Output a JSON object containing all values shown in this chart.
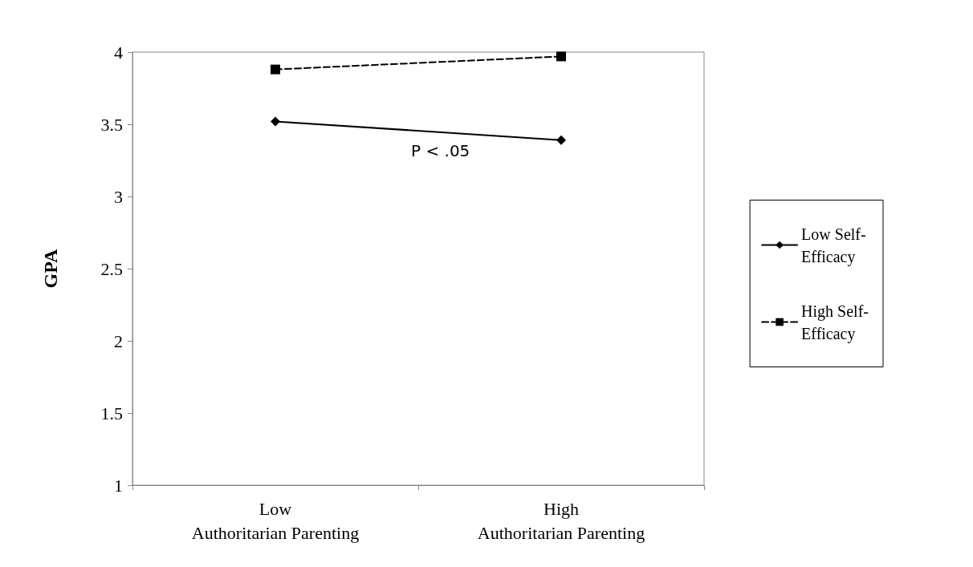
{
  "chart_data": {
    "type": "line",
    "ylabel": "GPA",
    "categories": [
      "Low Authoritarian Parenting",
      "High Authoritarian Parenting"
    ],
    "series": [
      {
        "name": "Low Self-Efficacy",
        "color": "#000000",
        "values": [
          3.52,
          3.39
        ],
        "marker": "diamond",
        "line_style": "solid"
      },
      {
        "name": "High Self-Efficacy",
        "color": "#000000",
        "values": [
          3.88,
          3.97
        ],
        "marker": "square",
        "line_style": "dashed"
      }
    ],
    "ylim": [
      1,
      4
    ],
    "yticks": [
      1,
      1.5,
      2,
      2.5,
      3,
      3.5,
      4
    ],
    "grid": false,
    "legend": "right",
    "annotations": [
      "P < .05"
    ]
  }
}
